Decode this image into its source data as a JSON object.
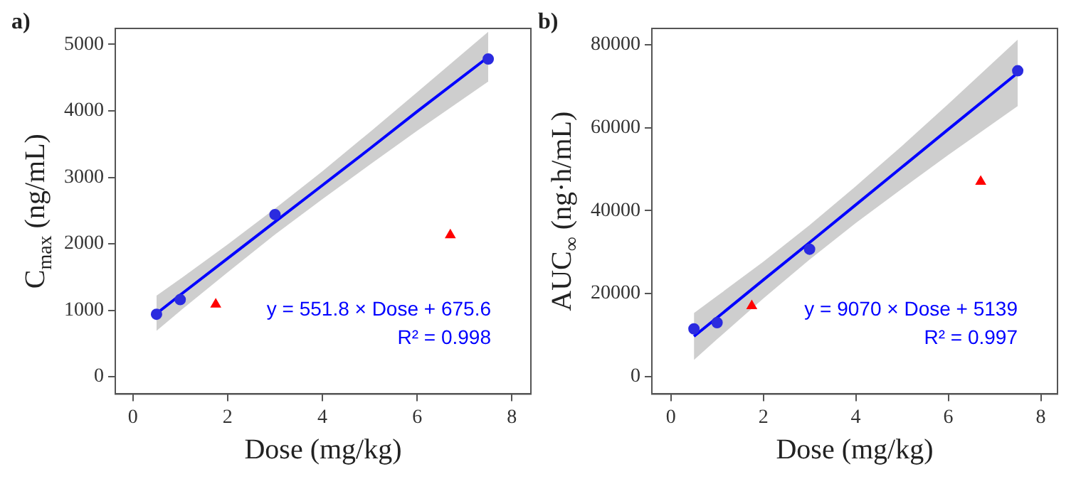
{
  "chart_data": [
    {
      "type": "scatter",
      "title": "a)",
      "xlabel": "Dose (mg/kg)",
      "ylabel": "C$_{max}$ (ng/mL)",
      "xlim": [
        -0.37,
        8.4
      ],
      "xticks": [
        0,
        2,
        4,
        6,
        8
      ],
      "ylim": [
        -260,
        5240
      ],
      "yticks": [
        0,
        1000,
        2000,
        3000,
        4000,
        5000
      ],
      "grid": false,
      "legend": false,
      "annotations": [
        "y = 551.8 × Dose + 675.6",
        "R² = 0.998"
      ],
      "series": [
        {
          "type": "line",
          "color": "#0000ff",
          "marker": "none",
          "x": [
            0.5,
            1,
            2,
            3,
            4,
            5,
            6,
            7.5
          ],
          "values": [
            950,
            1230,
            1780,
            2330,
            2880,
            3430,
            3990,
            4810
          ],
          "lower": [
            690,
            990,
            1570,
            2140,
            2670,
            3190,
            3700,
            4440
          ],
          "upper": [
            1220,
            1470,
            1990,
            2530,
            3090,
            3680,
            4280,
            5190
          ]
        },
        {
          "color": "#2b2bdf",
          "marker": "circle",
          "x": [
            0.5,
            1,
            3,
            7.5
          ],
          "values": [
            940,
            1160,
            2440,
            4780
          ]
        },
        {
          "color": "#ff0000",
          "marker": "triangle",
          "x": [
            1.75,
            6.7
          ],
          "values": [
            1090,
            2130
          ]
        }
      ]
    },
    {
      "type": "scatter",
      "title": "b)",
      "xlabel": "Dose (mg/kg)",
      "ylabel": "AUC$_{∞}$ (ng·h/mL)",
      "xlim": [
        -0.41,
        8.36
      ],
      "xticks": [
        0,
        2,
        4,
        6,
        8
      ],
      "ylim": [
        -4200,
        83900
      ],
      "yticks": [
        0,
        20000,
        40000,
        60000,
        80000
      ],
      "grid": false,
      "legend": false,
      "annotations": [
        "y = 9070 × Dose + 5139",
        "R² = 0.997"
      ],
      "series": [
        {
          "type": "line",
          "color": "#0000ff",
          "marker": "none",
          "x": [
            0.5,
            1,
            2,
            3,
            4,
            5,
            6,
            7.5
          ],
          "values": [
            9700,
            14200,
            23300,
            32300,
            41400,
            50500,
            59600,
            73200
          ],
          "lower": [
            4000,
            9000,
            18800,
            28200,
            37000,
            45300,
            53400,
            65200
          ],
          "upper": [
            15300,
            19400,
            27700,
            36500,
            45900,
            55600,
            65700,
            81200
          ]
        },
        {
          "color": "#2b2bdf",
          "marker": "circle",
          "x": [
            0.5,
            1,
            3,
            7.5
          ],
          "values": [
            11500,
            13000,
            30700,
            73700
          ]
        },
        {
          "color": "#ff0000",
          "marker": "triangle",
          "x": [
            1.75,
            6.7
          ],
          "values": [
            17000,
            47000
          ]
        }
      ]
    }
  ]
}
